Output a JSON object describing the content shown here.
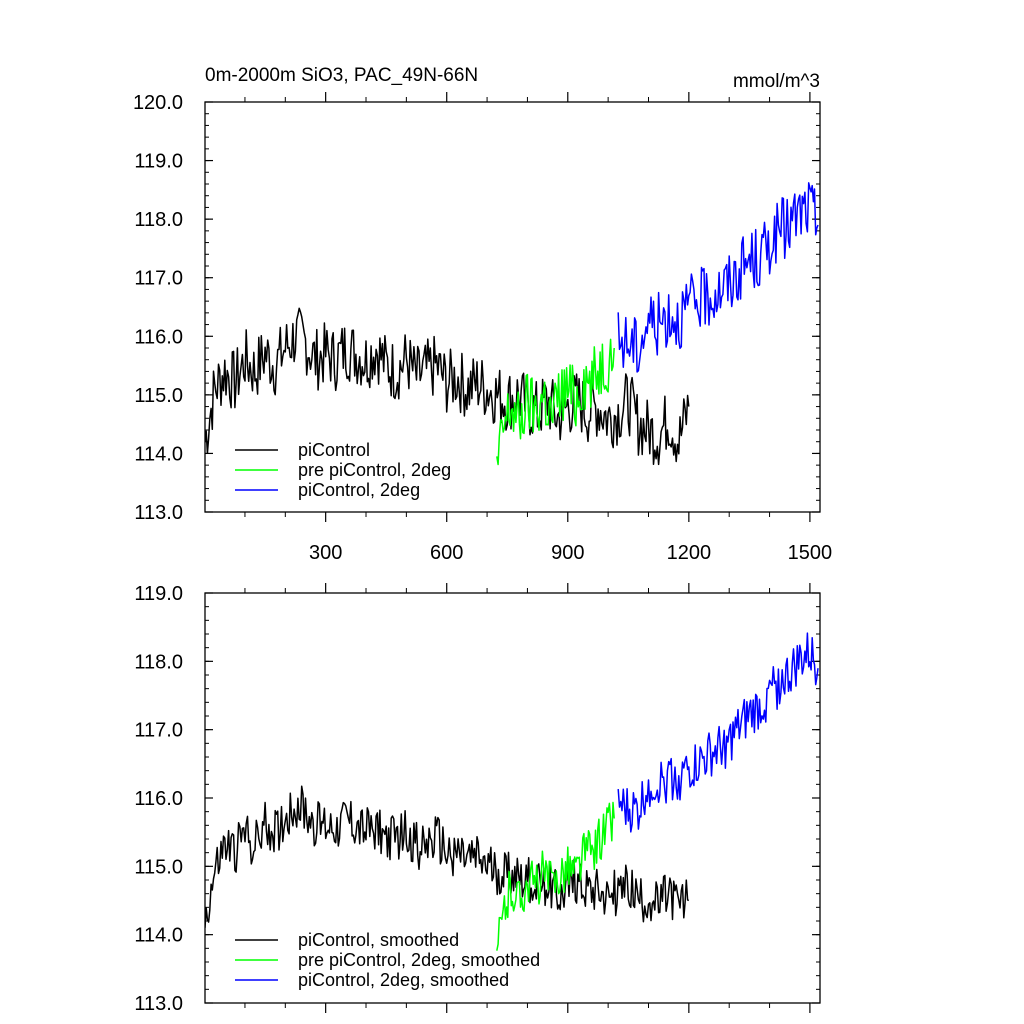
{
  "title_left": "0m-2000m SiO3, PAC_49N-66N",
  "title_right": "mmol/m^3",
  "colors": {
    "black": "#000000",
    "green": "#00ff00",
    "blue": "#0000ff"
  },
  "chart_data": [
    {
      "type": "line",
      "title": "0m-2000m SiO3, PAC_49N-66N",
      "units": "mmol/m^3",
      "xlim": [
        1,
        1525
      ],
      "ylim": [
        113.0,
        120.0
      ],
      "xticks": [
        "300",
        "600",
        "900",
        "1200",
        "1500"
      ],
      "yticks": [
        "113.0",
        "114.0",
        "115.0",
        "116.0",
        "117.0",
        "118.0",
        "119.0",
        "120.0"
      ],
      "legend_position": "bottom-left",
      "series": [
        {
          "name": "piControl",
          "color": "black",
          "x": [
            1,
            25,
            50,
            75,
            100,
            125,
            150,
            175,
            200,
            225,
            250,
            275,
            300,
            325,
            350,
            375,
            400,
            425,
            450,
            475,
            500,
            525,
            550,
            575,
            600,
            625,
            650,
            675,
            700,
            725,
            750,
            775,
            800,
            825,
            850,
            875,
            900,
            925,
            950,
            975,
            1000,
            1025,
            1050,
            1075,
            1100,
            1125,
            1150,
            1175,
            1200
          ],
          "values": [
            114.2,
            115.1,
            115.4,
            115.2,
            115.6,
            115.4,
            115.7,
            115.5,
            115.8,
            116.0,
            115.9,
            115.6,
            115.7,
            115.6,
            115.8,
            115.7,
            115.6,
            115.8,
            115.5,
            115.4,
            115.6,
            115.3,
            115.4,
            115.5,
            115.2,
            115.3,
            115.1,
            115.2,
            115.1,
            115.0,
            114.9,
            115.0,
            114.8,
            114.7,
            114.9,
            114.6,
            114.8,
            114.9,
            114.7,
            114.8,
            114.6,
            114.7,
            114.9,
            114.5,
            114.4,
            114.3,
            114.6,
            114.2,
            114.8
          ]
        },
        {
          "name": "pre piControl, 2deg",
          "color": "green",
          "x": [
            724,
            740,
            760,
            780,
            800,
            820,
            840,
            860,
            880,
            900,
            920,
            940,
            960,
            980,
            1000,
            1015
          ],
          "values": [
            113.7,
            114.4,
            114.8,
            114.5,
            114.9,
            114.7,
            115.0,
            114.6,
            115.0,
            115.1,
            114.9,
            115.3,
            115.2,
            115.5,
            115.6,
            115.8
          ]
        },
        {
          "name": "piControl, 2deg",
          "color": "blue",
          "x": [
            1025,
            1050,
            1075,
            1100,
            1125,
            1150,
            1175,
            1200,
            1225,
            1250,
            1275,
            1300,
            1325,
            1350,
            1375,
            1400,
            1425,
            1450,
            1475,
            1500,
            1520
          ],
          "values": [
            115.9,
            115.9,
            115.8,
            116.3,
            116.2,
            116.4,
            116.3,
            116.5,
            116.6,
            116.7,
            116.8,
            116.9,
            117.1,
            117.3,
            117.3,
            117.6,
            117.8,
            117.9,
            118.1,
            118.2,
            117.9
          ]
        }
      ]
    },
    {
      "type": "line",
      "xlim": [
        1,
        1525
      ],
      "ylim": [
        113.0,
        119.0
      ],
      "yticks": [
        "113.0",
        "114.0",
        "115.0",
        "116.0",
        "117.0",
        "118.0",
        "119.0"
      ],
      "legend_position": "bottom-left",
      "series": [
        {
          "name": "piControl, smoothed",
          "color": "black",
          "x": [
            1,
            25,
            50,
            75,
            100,
            125,
            150,
            175,
            200,
            225,
            250,
            275,
            300,
            325,
            350,
            375,
            400,
            425,
            450,
            475,
            500,
            525,
            550,
            575,
            600,
            625,
            650,
            675,
            700,
            725,
            750,
            775,
            800,
            825,
            850,
            875,
            900,
            925,
            950,
            975,
            1000,
            1025,
            1050,
            1075,
            1100,
            1125,
            1150,
            1175,
            1200
          ],
          "values": [
            114.2,
            114.9,
            115.3,
            115.2,
            115.5,
            115.3,
            115.6,
            115.5,
            115.7,
            115.9,
            115.8,
            115.6,
            115.6,
            115.6,
            115.7,
            115.6,
            115.5,
            115.6,
            115.4,
            115.4,
            115.5,
            115.3,
            115.3,
            115.4,
            115.2,
            115.2,
            115.1,
            115.1,
            115.0,
            114.9,
            114.9,
            114.9,
            114.8,
            114.7,
            114.8,
            114.6,
            114.7,
            114.8,
            114.7,
            114.7,
            114.6,
            114.6,
            114.7,
            114.5,
            114.5,
            114.4,
            114.6,
            114.4,
            114.5
          ]
        },
        {
          "name": "pre piControl, 2deg, smoothed",
          "color": "green",
          "x": [
            724,
            740,
            760,
            780,
            800,
            820,
            840,
            860,
            880,
            900,
            920,
            940,
            960,
            980,
            1000,
            1015
          ],
          "values": [
            113.7,
            114.3,
            114.7,
            114.5,
            114.8,
            114.7,
            114.9,
            114.7,
            114.9,
            115.0,
            114.9,
            115.2,
            115.2,
            115.4,
            115.6,
            115.7
          ]
        },
        {
          "name": "piControl, 2deg, smoothed",
          "color": "blue",
          "x": [
            1025,
            1050,
            1075,
            1100,
            1125,
            1150,
            1175,
            1200,
            1225,
            1250,
            1275,
            1300,
            1325,
            1350,
            1375,
            1400,
            1425,
            1450,
            1475,
            1500,
            1520
          ],
          "values": [
            115.9,
            115.8,
            115.8,
            116.2,
            116.2,
            116.3,
            116.3,
            116.4,
            116.5,
            116.6,
            116.7,
            116.8,
            117.0,
            117.2,
            117.3,
            117.5,
            117.7,
            117.8,
            118.0,
            118.1,
            117.9
          ]
        }
      ]
    }
  ]
}
